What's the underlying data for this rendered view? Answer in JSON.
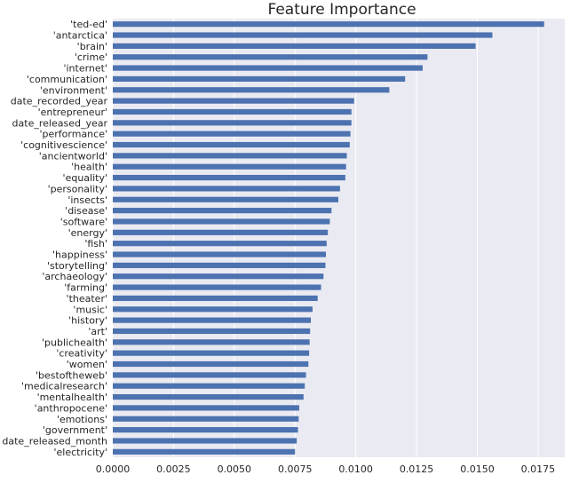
{
  "chart_data": {
    "type": "bar",
    "orientation": "horizontal",
    "title": "Feature Importance",
    "xlabel": "",
    "ylabel": "",
    "xlim": [
      0,
      0.0186
    ],
    "xticks": [
      "0.0000",
      "0.0025",
      "0.0050",
      "0.0075",
      "0.0100",
      "0.0125",
      "0.0150",
      "0.0175"
    ],
    "grid": true,
    "colors": {
      "bar": "#4c72b0",
      "background": "#eaeaf2",
      "grid": "#ffffff",
      "text": "#262626"
    },
    "categories": [
      "'ted-ed'",
      "'antarctica'",
      "'brain'",
      "'crime'",
      "'internet'",
      "'communication'",
      "'environment'",
      "date_recorded_year",
      "'entrepreneur'",
      "date_released_year",
      "'performance'",
      "'cognitivescience'",
      "'ancientworld'",
      "'health'",
      "'equality'",
      "'personality'",
      "'insects'",
      "'disease'",
      "'software'",
      "'energy'",
      "'fish'",
      "'happiness'",
      "'storytelling'",
      "'archaeology'",
      "'farming'",
      "'theater'",
      "'music'",
      "'history'",
      "'art'",
      "'publichealth'",
      "'creativity'",
      "'women'",
      "'bestoftheweb'",
      "'medicalresearch'",
      "'mentalhealth'",
      "'anthropocene'",
      "'emotions'",
      "'government'",
      "date_released_month",
      "'electricity'"
    ],
    "values": [
      0.01775,
      0.01562,
      0.01493,
      0.01295,
      0.01275,
      0.01203,
      0.01138,
      0.00993,
      0.00982,
      0.00982,
      0.00978,
      0.00975,
      0.00963,
      0.0096,
      0.00957,
      0.00935,
      0.00928,
      0.009,
      0.00893,
      0.00885,
      0.0088,
      0.00877,
      0.00875,
      0.00867,
      0.00857,
      0.00843,
      0.00822,
      0.00815,
      0.00812,
      0.0081,
      0.00808,
      0.00805,
      0.00795,
      0.0079,
      0.00785,
      0.00767,
      0.00765,
      0.00762,
      0.00757,
      0.0075
    ]
  }
}
